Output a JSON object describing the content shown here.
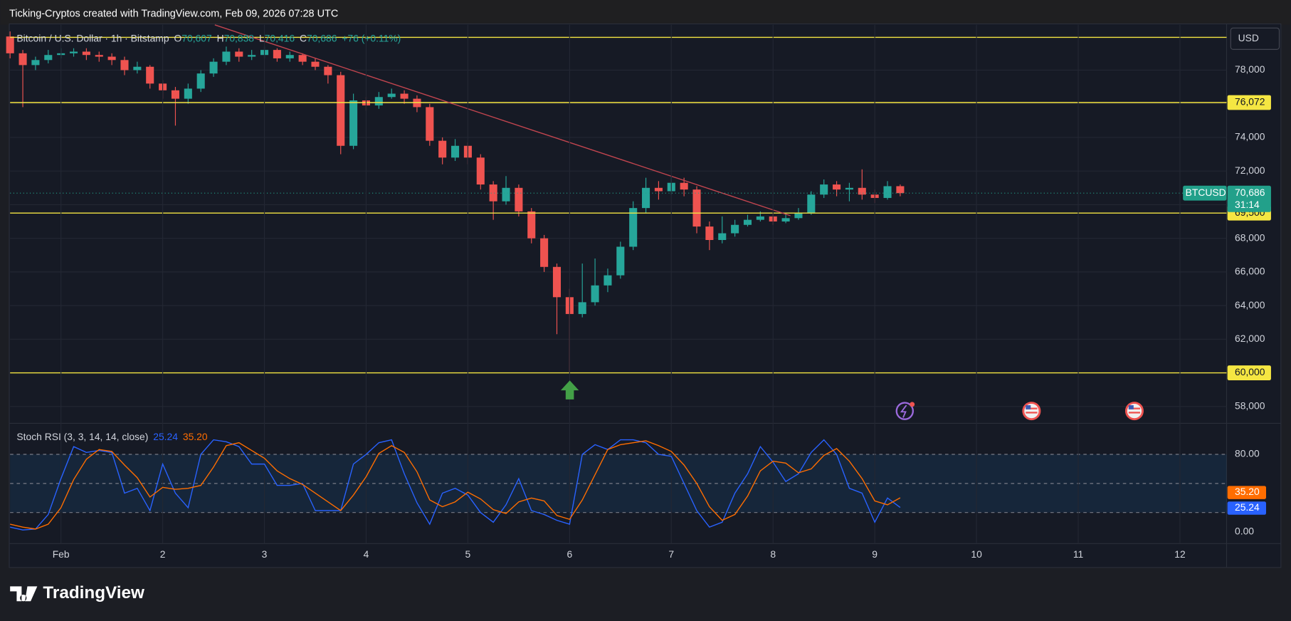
{
  "header": {
    "credit": "Ticking-Cryptos created with TradingView.com, Feb 09, 2026 07:28 UTC",
    "symbol_title": "Bitcoin / U.S. Dollar · 1h · Bitstamp",
    "ohlc": [
      {
        "key": "O",
        "value": "70,607"
      },
      {
        "key": "H",
        "value": "70,838"
      },
      {
        "key": "L",
        "value": "70,416"
      },
      {
        "key": "C",
        "value": "70,686"
      }
    ],
    "change": "+76 (+0.11%)",
    "currency": "USD"
  },
  "chart_data": [
    {
      "type": "candlestick",
      "x": [
        -12,
        -9,
        -6,
        -3,
        0,
        3,
        6,
        9,
        12,
        15,
        18,
        21,
        24,
        27,
        30,
        33,
        36,
        39,
        42,
        45,
        48,
        51,
        54,
        57,
        60,
        63,
        66,
        69,
        72,
        75,
        78,
        81,
        84,
        87,
        90,
        93,
        96,
        99,
        102,
        105,
        108,
        111,
        114,
        117,
        120,
        123,
        126,
        129,
        132,
        135,
        138,
        141,
        144,
        147,
        150,
        153,
        156,
        159,
        162,
        165,
        168,
        171,
        174,
        177,
        180,
        183,
        186,
        189,
        192,
        195,
        198
      ],
      "open": [
        80000,
        79000,
        78300,
        78600,
        78900,
        79000,
        79100,
        78900,
        78800,
        78600,
        78000,
        78200,
        77200,
        76800,
        76300,
        76900,
        77800,
        78500,
        79100,
        78800,
        78900,
        79200,
        78700,
        78900,
        78500,
        78200,
        77700,
        73500,
        76200,
        75900,
        76400,
        76600,
        76300,
        75800,
        73800,
        72800,
        73500,
        72800,
        71200,
        70200,
        71000,
        69600,
        68000,
        66300,
        64500,
        63500,
        64200,
        65200,
        65800,
        67500,
        69800,
        71000,
        70800,
        71300,
        70900,
        68700,
        67900,
        68300,
        68800,
        69100,
        69300,
        69000,
        69200,
        69500,
        70600,
        71200,
        70900,
        71000,
        70600,
        70400,
        71100
      ],
      "high": [
        80300,
        79200,
        78800,
        79200,
        79300,
        79300,
        79300,
        79100,
        79000,
        78800,
        78500,
        78300,
        77400,
        77000,
        77200,
        78000,
        78700,
        79400,
        79300,
        79200,
        79400,
        79300,
        79100,
        79000,
        78700,
        78300,
        77900,
        76600,
        76400,
        76700,
        76900,
        76800,
        76500,
        76000,
        74000,
        73900,
        73700,
        73000,
        71400,
        71700,
        71200,
        69800,
        68200,
        66500,
        65000,
        66500,
        66800,
        66200,
        67800,
        70200,
        71600,
        71400,
        71700,
        71600,
        71100,
        69000,
        69300,
        69100,
        69400,
        69600,
        69500,
        69500,
        69800,
        70800,
        71500,
        71400,
        71300,
        72100,
        70900,
        71400,
        71200
      ],
      "low": [
        78700,
        75800,
        78000,
        78400,
        78700,
        78800,
        78600,
        78500,
        78300,
        77700,
        77800,
        76900,
        76300,
        74700,
        76000,
        76700,
        77600,
        78300,
        78500,
        78600,
        78700,
        78500,
        78500,
        78300,
        78000,
        77200,
        73000,
        73300,
        75600,
        75700,
        76300,
        76000,
        75500,
        73500,
        72400,
        72600,
        72400,
        70900,
        69100,
        70000,
        69300,
        67700,
        66000,
        62300,
        60000,
        63300,
        64000,
        64800,
        65600,
        67300,
        69500,
        70300,
        70600,
        70500,
        68300,
        67300,
        67700,
        68100,
        68700,
        69000,
        68800,
        68900,
        69100,
        69400,
        70400,
        70500,
        70200,
        70300,
        70100,
        70300,
        70500
      ],
      "close": [
        79000,
        78300,
        78600,
        78900,
        79000,
        79100,
        78900,
        78800,
        78600,
        78000,
        78200,
        77200,
        76800,
        76300,
        76900,
        77800,
        78500,
        79100,
        78800,
        78900,
        79200,
        78700,
        78900,
        78500,
        78200,
        77700,
        73500,
        76200,
        75900,
        76400,
        76600,
        76300,
        75800,
        73800,
        72800,
        73500,
        72800,
        71200,
        70200,
        71000,
        69600,
        68000,
        66300,
        64500,
        63500,
        64200,
        65200,
        65800,
        67500,
        69800,
        71000,
        70800,
        71300,
        70900,
        68700,
        67900,
        68300,
        68800,
        69100,
        69300,
        69000,
        69200,
        69500,
        70600,
        71200,
        70900,
        71000,
        70600,
        70400,
        71100,
        70686
      ],
      "up_color": "#26a69a",
      "down_color": "#ef5350",
      "xlim": [
        -12,
        275
      ],
      "ylim": [
        57000,
        80700
      ],
      "yticks": [
        {
          "value": 58000,
          "label": "58,000"
        },
        {
          "value": 60000,
          "label": "60,000"
        },
        {
          "value": 62000,
          "label": "62,000"
        },
        {
          "value": 64000,
          "label": "64,000"
        },
        {
          "value": 66000,
          "label": "66,000"
        },
        {
          "value": 68000,
          "label": "68,000"
        },
        {
          "value": 70000,
          "label": "70,000"
        },
        {
          "value": 72000,
          "label": "72,000"
        },
        {
          "value": 74000,
          "label": "74,000"
        },
        {
          "value": 76000,
          "label": "76,000"
        },
        {
          "value": 78000,
          "label": "78,000"
        }
      ],
      "grid": true,
      "levels": [
        79950,
        {
          "value": 76072,
          "label": "76,072"
        },
        {
          "value": 69500,
          "label": "69,500"
        },
        {
          "value": 60000,
          "label": "60,000"
        }
      ],
      "level_color": "#f5e642",
      "trendline": {
        "x": [
          36.3,
          172.1
        ],
        "y": [
          80690,
          69345
        ],
        "color": "#c2454f"
      },
      "last_price": {
        "value": 70686,
        "label": "70,686",
        "symbol": "BTCUSD",
        "countdown": "31:14",
        "color": "#22a08a"
      }
    },
    {
      "type": "line",
      "title": "Stoch RSI (3, 3, 14, 14, close)",
      "x": [
        -12,
        -9,
        -6,
        -3,
        0,
        3,
        6,
        9,
        12,
        15,
        18,
        21,
        24,
        27,
        30,
        33,
        36,
        39,
        42,
        45,
        48,
        51,
        54,
        57,
        60,
        63,
        66,
        69,
        72,
        75,
        78,
        81,
        84,
        87,
        90,
        93,
        96,
        99,
        102,
        105,
        108,
        111,
        114,
        117,
        120,
        123,
        126,
        129,
        132,
        135,
        138,
        141,
        144,
        147,
        150,
        153,
        156,
        159,
        162,
        165,
        168,
        171,
        174,
        177,
        180,
        183,
        186,
        189,
        192,
        195,
        198
      ],
      "series": [
        {
          "name": "K",
          "color": "#2962ff",
          "values": [
            5,
            2,
            3,
            18,
            55,
            88,
            82,
            84,
            82,
            40,
            45,
            22,
            70,
            40,
            25,
            80,
            95,
            93,
            88,
            70,
            70,
            48,
            48,
            50,
            22,
            22,
            22,
            70,
            80,
            92,
            95,
            60,
            30,
            8,
            40,
            45,
            38,
            20,
            10,
            28,
            55,
            22,
            18,
            12,
            8,
            80,
            90,
            85,
            95,
            95,
            92,
            80,
            78,
            50,
            22,
            5,
            10,
            40,
            60,
            88,
            72,
            52,
            60,
            82,
            95,
            80,
            45,
            40,
            10,
            35,
            25.24
          ]
        },
        {
          "name": "D",
          "color": "#ff6d00",
          "values": [
            8,
            5,
            3,
            8,
            25,
            54,
            75,
            85,
            83,
            69,
            56,
            36,
            46,
            44,
            45,
            48,
            67,
            89,
            92,
            84,
            76,
            63,
            55,
            49,
            40,
            31,
            22,
            38,
            57,
            81,
            89,
            82,
            62,
            33,
            26,
            31,
            41,
            34,
            23,
            19,
            31,
            35,
            32,
            17,
            13,
            33,
            59,
            85,
            90,
            92,
            94,
            89,
            83,
            69,
            50,
            26,
            12,
            18,
            37,
            63,
            73,
            71,
            61,
            65,
            79,
            86,
            73,
            55,
            32,
            28,
            35.2
          ]
        }
      ],
      "legend_values": [
        "25.24",
        "35.20"
      ],
      "xlim": [
        -12,
        275
      ],
      "ylim": [
        -12,
        112
      ],
      "yticks": [
        {
          "value": 80,
          "label": "80.00"
        },
        {
          "value": 0,
          "label": "0.00"
        }
      ],
      "bands": [
        20,
        50,
        80
      ],
      "xticks": [
        {
          "value": 0,
          "label": "Feb"
        },
        {
          "value": 24,
          "label": "2"
        },
        {
          "value": 48,
          "label": "3"
        },
        {
          "value": 72,
          "label": "4"
        },
        {
          "value": 96,
          "label": "5"
        },
        {
          "value": 120,
          "label": "6"
        },
        {
          "value": 144,
          "label": "7"
        },
        {
          "value": 168,
          "label": "8"
        },
        {
          "value": 192,
          "label": "9"
        },
        {
          "value": 216,
          "label": "10"
        },
        {
          "value": 240,
          "label": "11"
        },
        {
          "value": 264,
          "label": "12"
        }
      ],
      "grid": true
    }
  ],
  "footer": {
    "brand": "TradingView"
  }
}
